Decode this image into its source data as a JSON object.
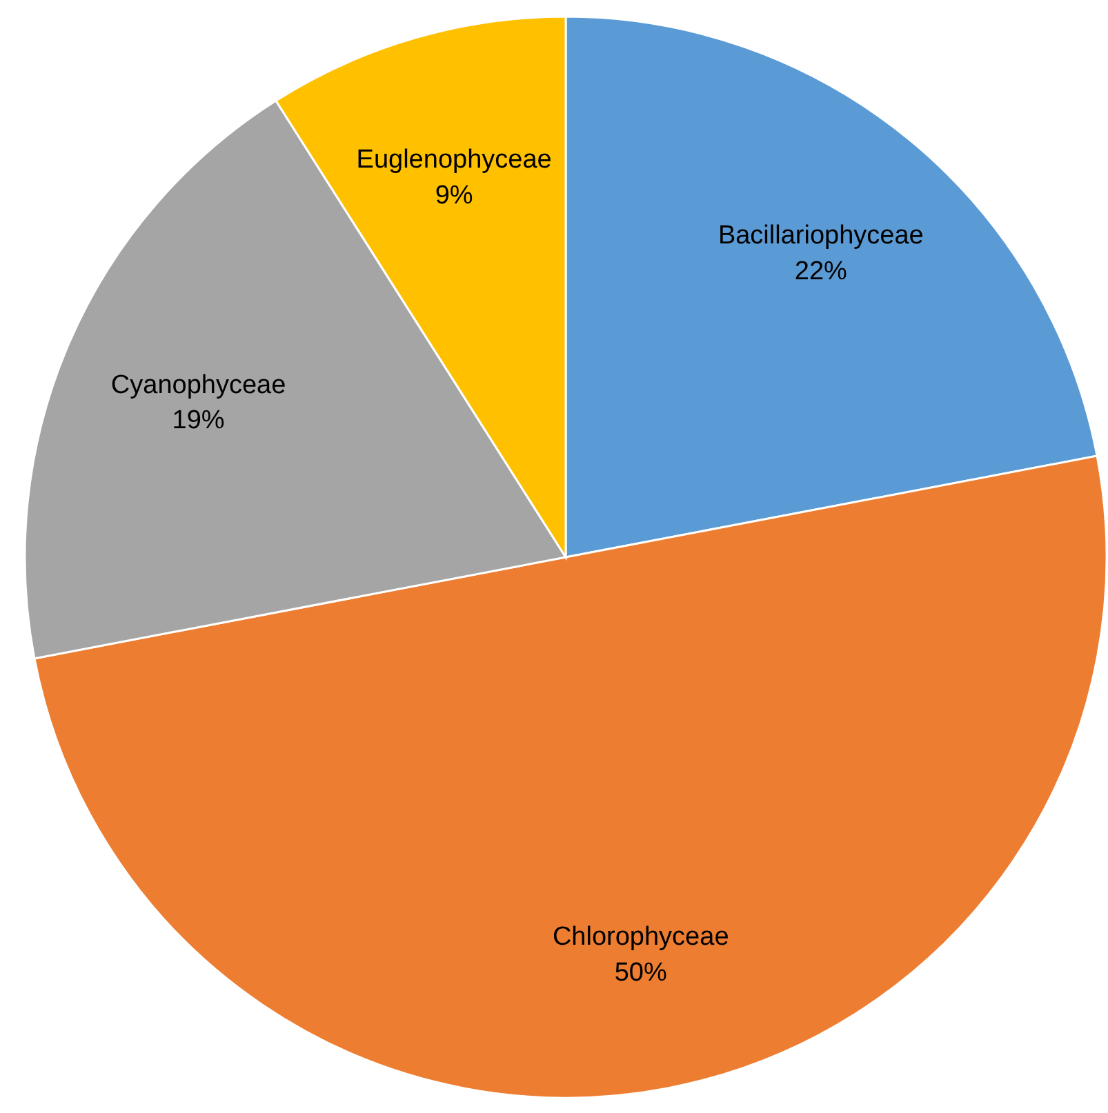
{
  "chart_data": {
    "type": "pie",
    "categories": [
      "Bacillariophyceae",
      "Chlorophyceae",
      "Cyanophyceae",
      "Euglenophyceae"
    ],
    "values": [
      22,
      50,
      19,
      9
    ],
    "colors": [
      "#5b9bd5",
      "#ed7d31",
      "#a5a5a5",
      "#ffc000"
    ],
    "value_labels": [
      "22%",
      "50%",
      "19%",
      "9%"
    ],
    "legend": false
  }
}
